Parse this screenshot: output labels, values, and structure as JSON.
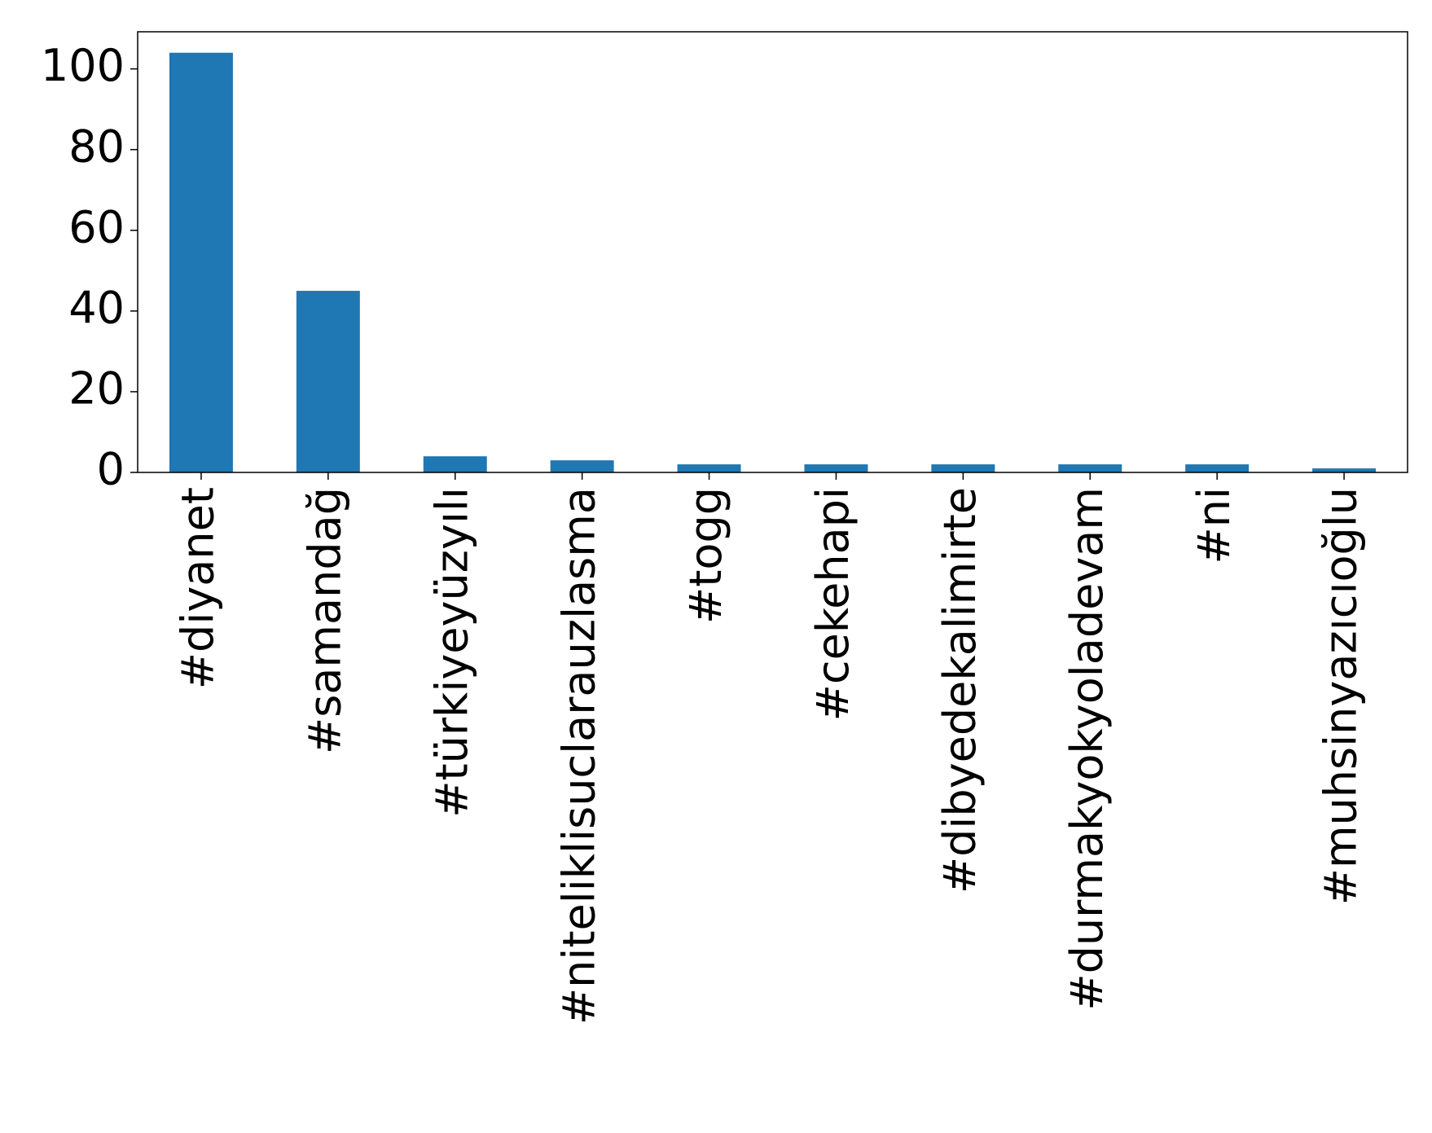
{
  "chart_data": {
    "type": "bar",
    "categories": [
      "#diyanet",
      "#samandağ",
      "#türkiyeyüzyılı",
      "#niteliklisuclarauzlasma",
      "#togg",
      "#cekehapi",
      "#dibyedekalimirte",
      "#durmakyokyoladevam",
      "#ni",
      "#muhsinyazıcıoğlu"
    ],
    "values": [
      104,
      45,
      4,
      3,
      2,
      2,
      2,
      2,
      2,
      1
    ],
    "color": "#1f77b4",
    "ylim": [
      0,
      109.2
    ],
    "yticks": [
      0,
      20,
      40,
      60,
      80,
      100
    ],
    "grid": false
  }
}
